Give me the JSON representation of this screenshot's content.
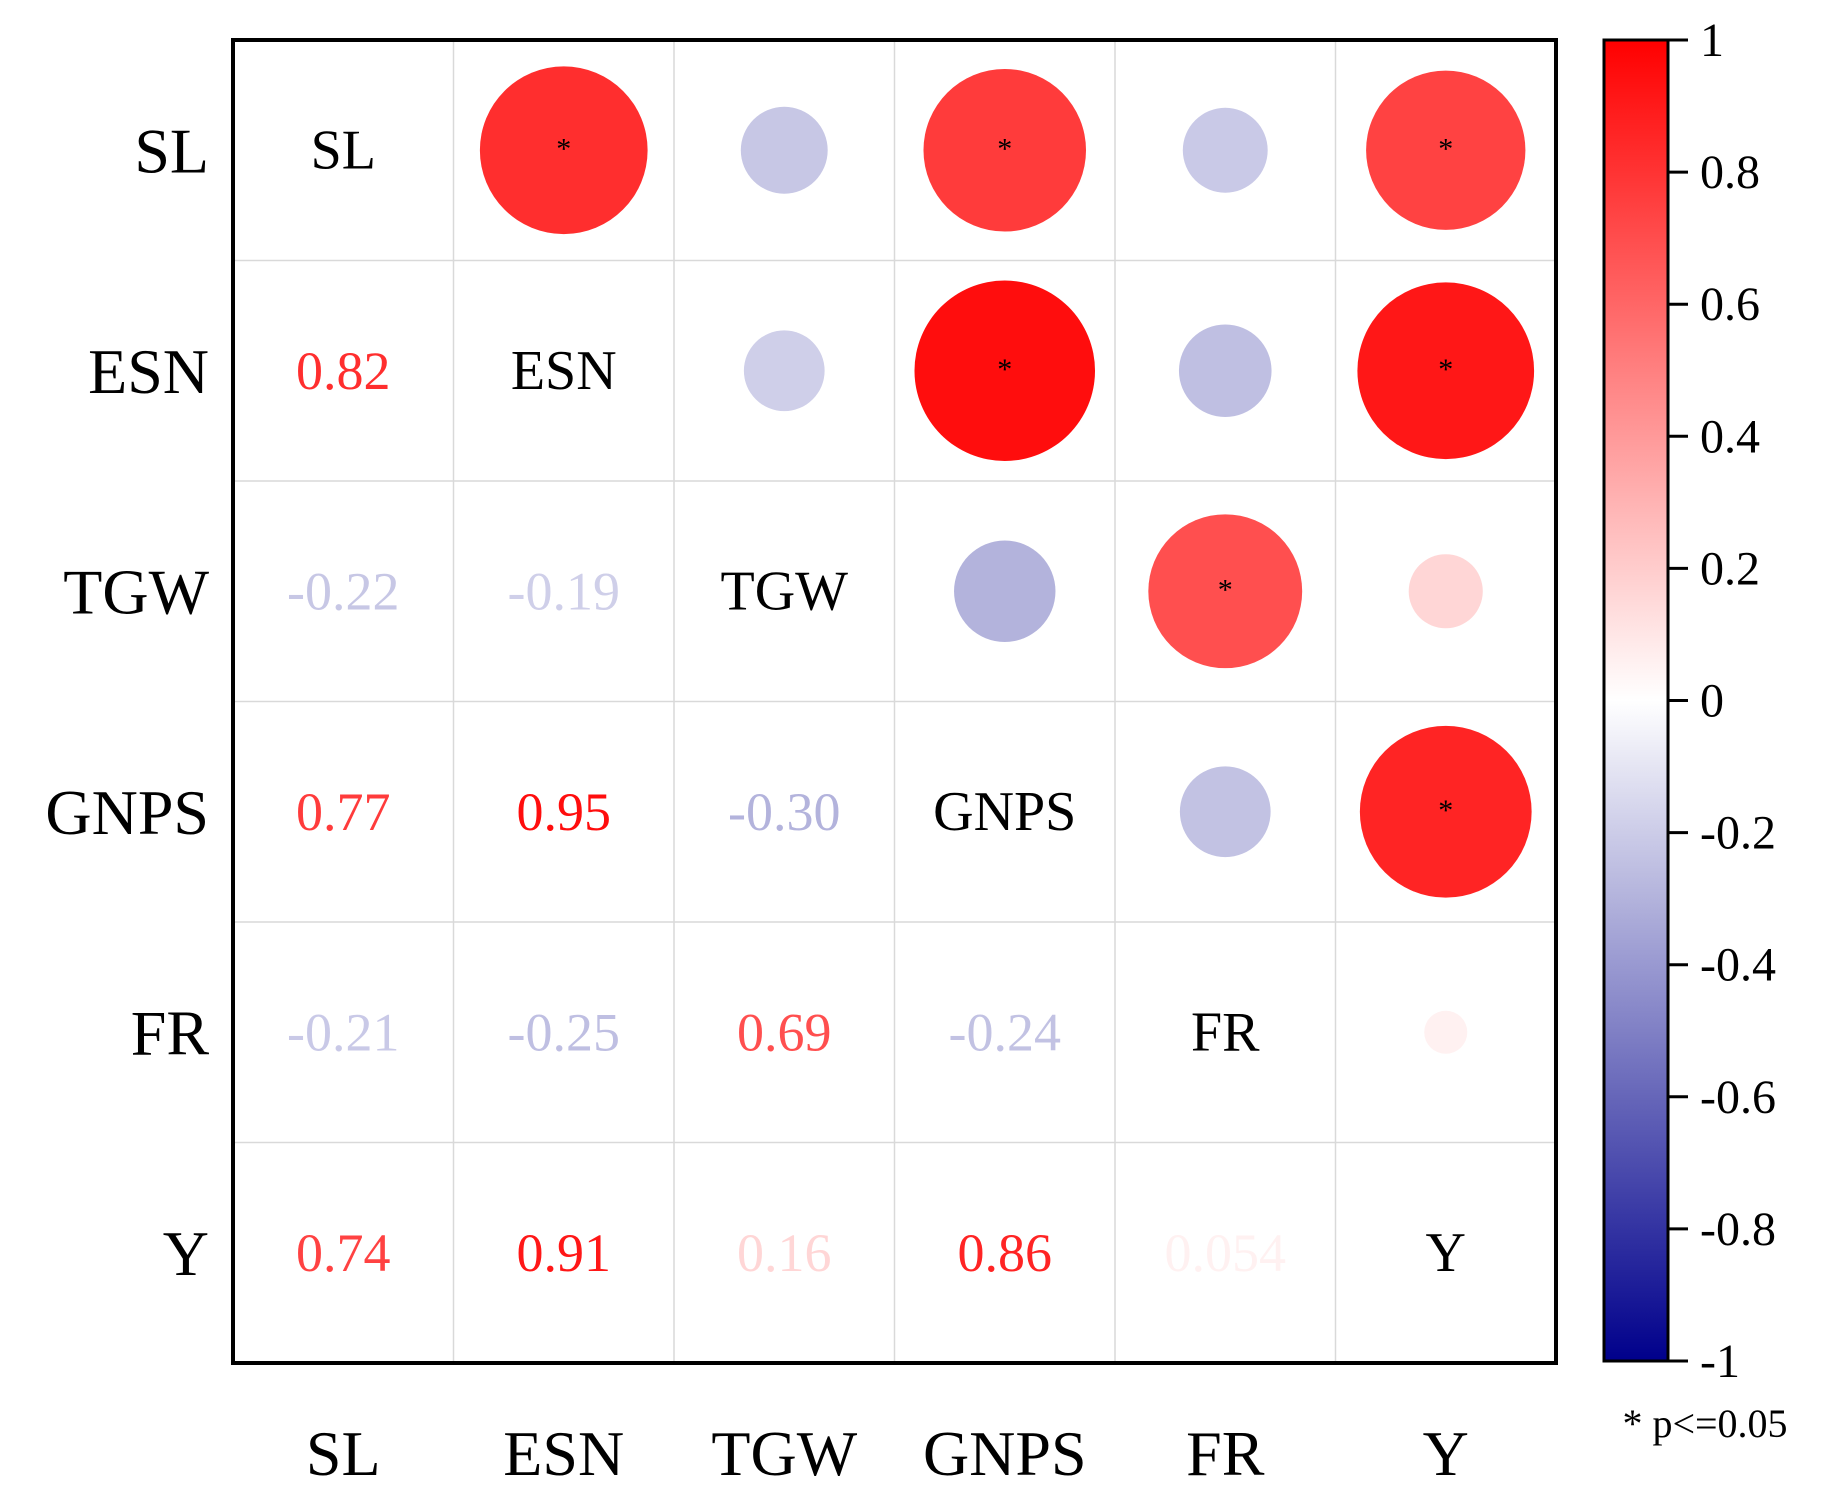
{
  "chart_data": {
    "type": "heatmap",
    "variables": [
      "SL",
      "ESN",
      "TGW",
      "GNPS",
      "FR",
      "Y"
    ],
    "correlation_matrix": [
      [
        1,
        0.82,
        -0.22,
        0.77,
        -0.21,
        0.74
      ],
      [
        0.82,
        1,
        -0.19,
        0.95,
        -0.25,
        0.91
      ],
      [
        -0.22,
        -0.19,
        1,
        -0.3,
        0.69,
        0.16
      ],
      [
        0.77,
        0.95,
        -0.3,
        1,
        -0.24,
        0.86
      ],
      [
        -0.21,
        -0.25,
        0.69,
        -0.24,
        1,
        0.054
      ],
      [
        0.74,
        0.91,
        0.16,
        0.86,
        0.054,
        1
      ]
    ],
    "lower_triangle_labels": [
      [
        "",
        "",
        "",
        "",
        "",
        ""
      ],
      [
        "0.82",
        "",
        "",
        "",
        "",
        ""
      ],
      [
        "-0.22",
        "-0.19",
        "",
        "",
        "",
        ""
      ],
      [
        "0.77",
        "0.95",
        "-0.30",
        "",
        "",
        ""
      ],
      [
        "-0.21",
        "-0.25",
        "0.69",
        "-0.24",
        "",
        ""
      ],
      [
        "0.74",
        "0.91",
        "0.16",
        "0.86",
        "0.054",
        ""
      ]
    ],
    "upper_triangle_significance": [
      [
        "",
        "*",
        "",
        "*",
        "",
        "*"
      ],
      [
        "",
        "",
        "",
        "*",
        "",
        "*"
      ],
      [
        "",
        "",
        "",
        "",
        "*",
        ""
      ],
      [
        "",
        "",
        "",
        "",
        "",
        "*"
      ],
      [
        "",
        "",
        "",
        "",
        "",
        ""
      ],
      [
        "",
        "",
        "",
        "",
        "",
        ""
      ]
    ],
    "upper_display": "circles",
    "lower_display": "numbers",
    "diagonal_display": "variable names",
    "colorbar": {
      "range": [
        -1,
        1
      ],
      "ticks": [
        1,
        0.8,
        0.6,
        0.4,
        0.2,
        0,
        -0.2,
        -0.4,
        -0.6,
        -0.8,
        -1
      ],
      "tick_labels": [
        "1",
        "0.8",
        "0.6",
        "0.4",
        "0.2",
        "0",
        "-0.2",
        "-0.4",
        "-0.6",
        "-0.8",
        "-1"
      ],
      "color_low": "#00008b",
      "color_mid": "#ffffff",
      "color_high": "#ff0000"
    },
    "significance_note": "* p<=0.05",
    "grid": true,
    "legend_position": "right"
  }
}
